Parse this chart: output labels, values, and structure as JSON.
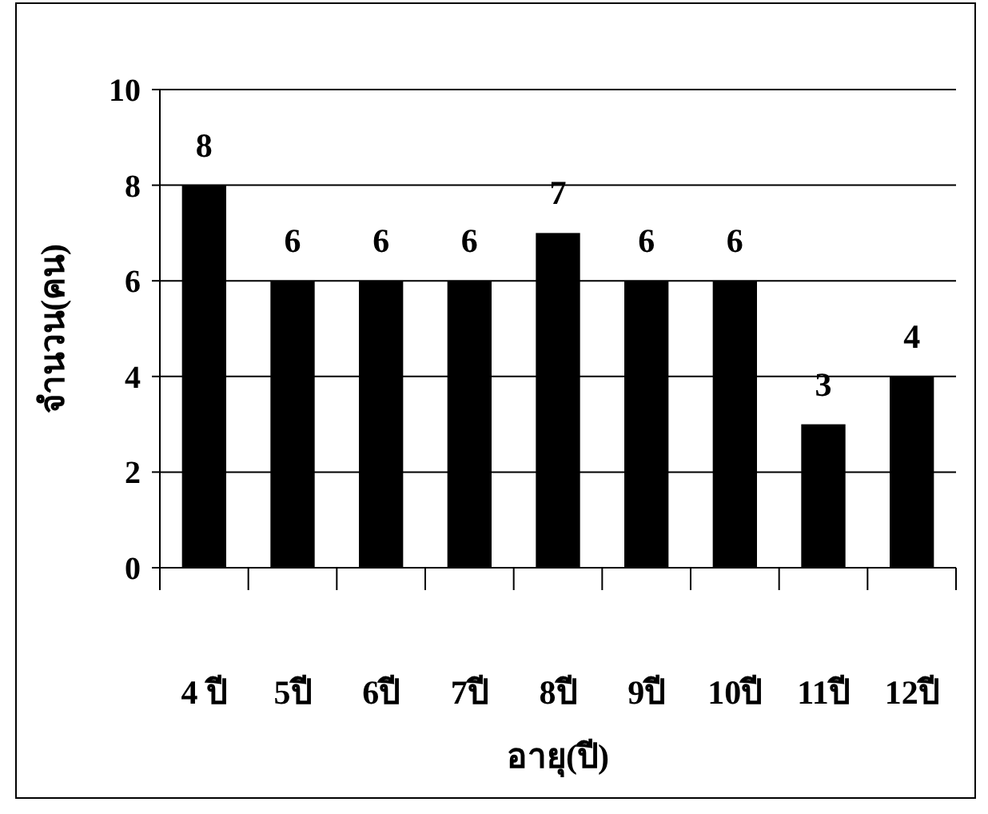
{
  "chart_data": {
    "type": "bar",
    "xlabel": "อายุ(ปี)",
    "ylabel": "จำนวน(คน)",
    "categories": [
      "4 ปี",
      "5ปี",
      "6ปี",
      "7ปี",
      "8ปี",
      "9ปี",
      "10ปี",
      "11ปี",
      "12ปี"
    ],
    "values": [
      8,
      6,
      6,
      6,
      7,
      6,
      6,
      3,
      4
    ],
    "color": "#000000",
    "ylim": [
      0,
      10
    ],
    "yticks": [
      0,
      2,
      4,
      6,
      8,
      10
    ],
    "grid": "y",
    "data_labels": true
  }
}
